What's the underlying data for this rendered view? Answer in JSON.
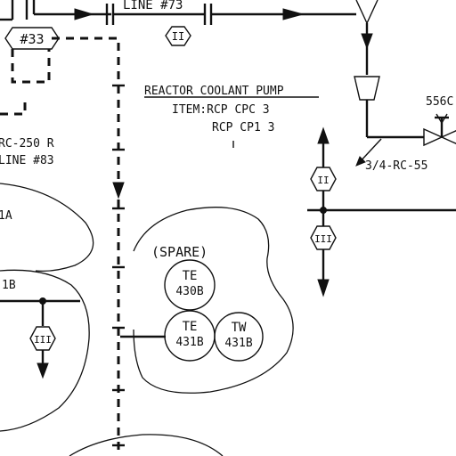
{
  "labels": {
    "line_73": "LINE #73",
    "tag_33": "#33",
    "title": "REACTOR COOLANT PUMP",
    "item1": "ITEM:RCP CPC 3",
    "item2": "RCP CP1 3",
    "rc250": "RC-250 R",
    "line83": "LINE #83",
    "label_a": "1A",
    "label_b": "1B",
    "spare": "(SPARE)",
    "valve_tag": "556C",
    "pipe_size": "3/4-RC-55"
  },
  "instruments": [
    {
      "id": "te-430b",
      "type": "TE",
      "number": "430B"
    },
    {
      "id": "te-431b",
      "type": "TE",
      "number": "431B"
    },
    {
      "id": "tw-431b",
      "type": "TW",
      "number": "431B"
    }
  ],
  "hex_markers": {
    "top": "II",
    "right_upper": "II",
    "right_lower": "III",
    "left": "III"
  }
}
